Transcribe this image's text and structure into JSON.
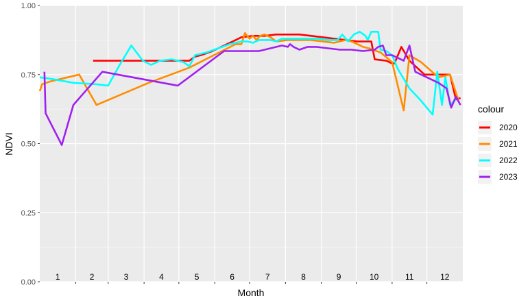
{
  "chart_data": {
    "type": "line",
    "title": "",
    "xlabel": "Month",
    "ylabel": "NDVI",
    "ylim": [
      0,
      1
    ],
    "xlim": [
      1,
      366
    ],
    "y_ticks": [
      "0.00",
      "0.25",
      "0.50",
      "0.75",
      "1.00"
    ],
    "month_labels": [
      "1",
      "2",
      "3",
      "4",
      "5",
      "6",
      "7",
      "8",
      "9",
      "10",
      "11",
      "12"
    ],
    "grid": true,
    "legend": {
      "title": "colour",
      "position": "right"
    },
    "series": [
      {
        "name": "2020",
        "color": "#ff0000",
        "points": [
          [
            47,
            0.8
          ],
          [
            60,
            0.8
          ],
          [
            80,
            0.8
          ],
          [
            100,
            0.8
          ],
          [
            120,
            0.8
          ],
          [
            130,
            0.8
          ],
          [
            135,
            0.815
          ],
          [
            140,
            0.82
          ],
          [
            150,
            0.835
          ],
          [
            160,
            0.855
          ],
          [
            170,
            0.875
          ],
          [
            175,
            0.885
          ],
          [
            185,
            0.89
          ],
          [
            195,
            0.89
          ],
          [
            205,
            0.895
          ],
          [
            215,
            0.895
          ],
          [
            225,
            0.895
          ],
          [
            235,
            0.89
          ],
          [
            245,
            0.885
          ],
          [
            255,
            0.88
          ],
          [
            265,
            0.875
          ],
          [
            275,
            0.87
          ],
          [
            282,
            0.87
          ],
          [
            287,
            0.87
          ],
          [
            290,
            0.805
          ],
          [
            300,
            0.8
          ],
          [
            305,
            0.79
          ],
          [
            307,
            0.79
          ],
          [
            313,
            0.85
          ],
          [
            320,
            0.8
          ],
          [
            333,
            0.75
          ],
          [
            345,
            0.75
          ],
          [
            355,
            0.75
          ],
          [
            360,
            0.66
          ],
          [
            364,
            0.665
          ]
        ]
      },
      {
        "name": "2021",
        "color": "#ff8c00",
        "points": [
          [
            1,
            0.69
          ],
          [
            3,
            0.715
          ],
          [
            10,
            0.725
          ],
          [
            20,
            0.735
          ],
          [
            35,
            0.75
          ],
          [
            50,
            0.64
          ],
          [
            95,
            0.72
          ],
          [
            130,
            0.775
          ],
          [
            170,
            0.86
          ],
          [
            175,
            0.86
          ],
          [
            178,
            0.9
          ],
          [
            182,
            0.88
          ],
          [
            185,
            0.89
          ],
          [
            188,
            0.875
          ],
          [
            191,
            0.89
          ],
          [
            195,
            0.895
          ],
          [
            200,
            0.885
          ],
          [
            205,
            0.87
          ],
          [
            215,
            0.875
          ],
          [
            225,
            0.875
          ],
          [
            235,
            0.875
          ],
          [
            245,
            0.87
          ],
          [
            255,
            0.865
          ],
          [
            260,
            0.87
          ],
          [
            265,
            0.875
          ],
          [
            270,
            0.87
          ],
          [
            275,
            0.86
          ],
          [
            280,
            0.85
          ],
          [
            285,
            0.845
          ],
          [
            295,
            0.83
          ],
          [
            305,
            0.795
          ],
          [
            315,
            0.62
          ],
          [
            320,
            0.82
          ],
          [
            330,
            0.795
          ],
          [
            345,
            0.74
          ],
          [
            355,
            0.75
          ],
          [
            362,
            0.66
          ]
        ]
      },
      {
        "name": "2022",
        "color": "#00ffff",
        "points": [
          [
            1,
            0.74
          ],
          [
            10,
            0.735
          ],
          [
            30,
            0.72
          ],
          [
            50,
            0.715
          ],
          [
            60,
            0.71
          ],
          [
            70,
            0.785
          ],
          [
            80,
            0.855
          ],
          [
            90,
            0.8
          ],
          [
            97,
            0.785
          ],
          [
            105,
            0.8
          ],
          [
            115,
            0.805
          ],
          [
            125,
            0.795
          ],
          [
            130,
            0.78
          ],
          [
            135,
            0.82
          ],
          [
            145,
            0.83
          ],
          [
            155,
            0.845
          ],
          [
            165,
            0.86
          ],
          [
            175,
            0.87
          ],
          [
            180,
            0.87
          ],
          [
            185,
            0.865
          ],
          [
            190,
            0.875
          ],
          [
            200,
            0.875
          ],
          [
            205,
            0.87
          ],
          [
            210,
            0.88
          ],
          [
            220,
            0.88
          ],
          [
            230,
            0.88
          ],
          [
            240,
            0.88
          ],
          [
            250,
            0.875
          ],
          [
            258,
            0.875
          ],
          [
            262,
            0.895
          ],
          [
            267,
            0.87
          ],
          [
            272,
            0.895
          ],
          [
            277,
            0.905
          ],
          [
            282,
            0.89
          ],
          [
            284,
            0.875
          ],
          [
            287,
            0.905
          ],
          [
            293,
            0.905
          ],
          [
            295,
            0.84
          ],
          [
            300,
            0.835
          ],
          [
            305,
            0.82
          ],
          [
            310,
            0.77
          ],
          [
            320,
            0.7
          ],
          [
            330,
            0.655
          ],
          [
            340,
            0.605
          ],
          [
            344,
            0.76
          ],
          [
            348,
            0.64
          ],
          [
            351,
            0.74
          ],
          [
            355,
            0.64
          ],
          [
            360,
            0.66
          ]
        ]
      },
      {
        "name": "2023",
        "color": "#a020f0",
        "points": [
          [
            5,
            0.76
          ],
          [
            6,
            0.61
          ],
          [
            20,
            0.495
          ],
          [
            30,
            0.64
          ],
          [
            55,
            0.76
          ],
          [
            120,
            0.71
          ],
          [
            160,
            0.835
          ],
          [
            190,
            0.835
          ],
          [
            210,
            0.855
          ],
          [
            215,
            0.85
          ],
          [
            217,
            0.86
          ],
          [
            220,
            0.85
          ],
          [
            225,
            0.84
          ],
          [
            232,
            0.85
          ],
          [
            240,
            0.85
          ],
          [
            250,
            0.845
          ],
          [
            260,
            0.84
          ],
          [
            270,
            0.84
          ],
          [
            280,
            0.835
          ],
          [
            290,
            0.84
          ],
          [
            293,
            0.85
          ],
          [
            297,
            0.855
          ],
          [
            300,
            0.82
          ],
          [
            305,
            0.82
          ],
          [
            315,
            0.8
          ],
          [
            320,
            0.855
          ],
          [
            325,
            0.76
          ],
          [
            335,
            0.74
          ],
          [
            345,
            0.72
          ],
          [
            352,
            0.7
          ],
          [
            356,
            0.63
          ],
          [
            360,
            0.67
          ],
          [
            364,
            0.64
          ]
        ]
      }
    ]
  }
}
